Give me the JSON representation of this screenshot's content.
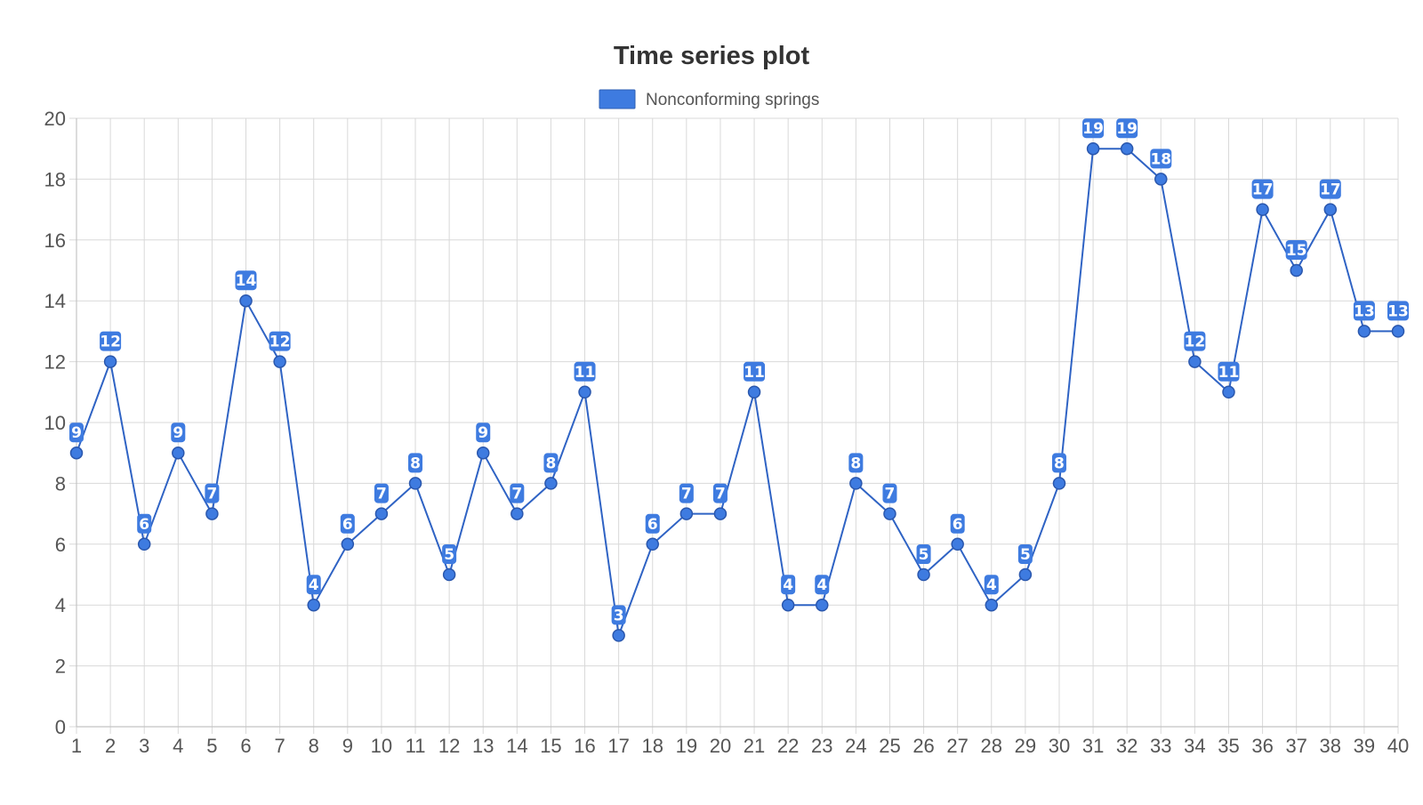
{
  "chart_data": {
    "type": "line",
    "title": "Time series plot",
    "xlabel": "",
    "ylabel": "",
    "x": [
      1,
      2,
      3,
      4,
      5,
      6,
      7,
      8,
      9,
      10,
      11,
      12,
      13,
      14,
      15,
      16,
      17,
      18,
      19,
      20,
      21,
      22,
      23,
      24,
      25,
      26,
      27,
      28,
      29,
      30,
      31,
      32,
      33,
      34,
      35,
      36,
      37,
      38,
      39,
      40
    ],
    "series": [
      {
        "name": "Nonconforming springs",
        "color": "#3e7be0",
        "values": [
          9,
          12,
          6,
          9,
          7,
          14,
          12,
          4,
          6,
          7,
          8,
          5,
          9,
          7,
          8,
          11,
          3,
          6,
          7,
          7,
          11,
          4,
          4,
          8,
          7,
          5,
          6,
          4,
          5,
          8,
          19,
          19,
          18,
          12,
          11,
          17,
          15,
          17,
          13,
          13
        ]
      }
    ],
    "ylim": [
      0,
      20
    ],
    "yticks": [
      0,
      2,
      4,
      6,
      8,
      10,
      12,
      14,
      16,
      18,
      20
    ],
    "grid": true,
    "legend_position": "top-center",
    "data_labels": true
  }
}
